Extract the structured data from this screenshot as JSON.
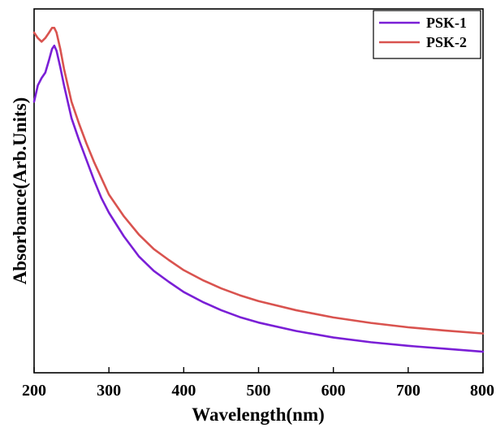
{
  "chart_data": {
    "type": "line",
    "title": "",
    "xlabel": "Wavelength(nm)",
    "ylabel": "Absorbance(Arb.Units)",
    "xlim": [
      200,
      800
    ],
    "ylim": [
      0,
      1
    ],
    "x_ticks": [
      200,
      300,
      400,
      500,
      600,
      700,
      800
    ],
    "x_tick_labels": [
      "200",
      "300",
      "400",
      "500",
      "600",
      "700",
      "800"
    ],
    "y_ticks_shown": false,
    "grid": false,
    "legend_position": "top-right",
    "series": [
      {
        "name": "PSK-1",
        "color": "#7a1fd6",
        "x": [
          200,
          205,
          210,
          215,
          220,
          224,
          227,
          230,
          235,
          240,
          245,
          250,
          260,
          270,
          280,
          290,
          300,
          320,
          340,
          360,
          380,
          400,
          425,
          450,
          475,
          500,
          550,
          600,
          650,
          700,
          750,
          800
        ],
        "y": [
          0.745,
          0.79,
          0.81,
          0.825,
          0.86,
          0.89,
          0.899,
          0.885,
          0.84,
          0.79,
          0.745,
          0.7,
          0.64,
          0.585,
          0.53,
          0.48,
          0.44,
          0.375,
          0.32,
          0.28,
          0.25,
          0.222,
          0.195,
          0.172,
          0.153,
          0.138,
          0.115,
          0.097,
          0.084,
          0.074,
          0.066,
          0.058
        ]
      },
      {
        "name": "PSK-2",
        "color": "#d9534f",
        "x": [
          200,
          205,
          210,
          215,
          220,
          224,
          227,
          230,
          235,
          240,
          245,
          250,
          260,
          270,
          280,
          290,
          300,
          320,
          340,
          360,
          380,
          400,
          425,
          450,
          475,
          500,
          550,
          600,
          650,
          700,
          750,
          800
        ],
        "y": [
          0.935,
          0.92,
          0.91,
          0.92,
          0.935,
          0.948,
          0.948,
          0.935,
          0.89,
          0.835,
          0.79,
          0.745,
          0.685,
          0.63,
          0.58,
          0.535,
          0.49,
          0.43,
          0.38,
          0.34,
          0.31,
          0.282,
          0.255,
          0.232,
          0.213,
          0.197,
          0.172,
          0.152,
          0.137,
          0.125,
          0.116,
          0.108
        ]
      }
    ]
  }
}
